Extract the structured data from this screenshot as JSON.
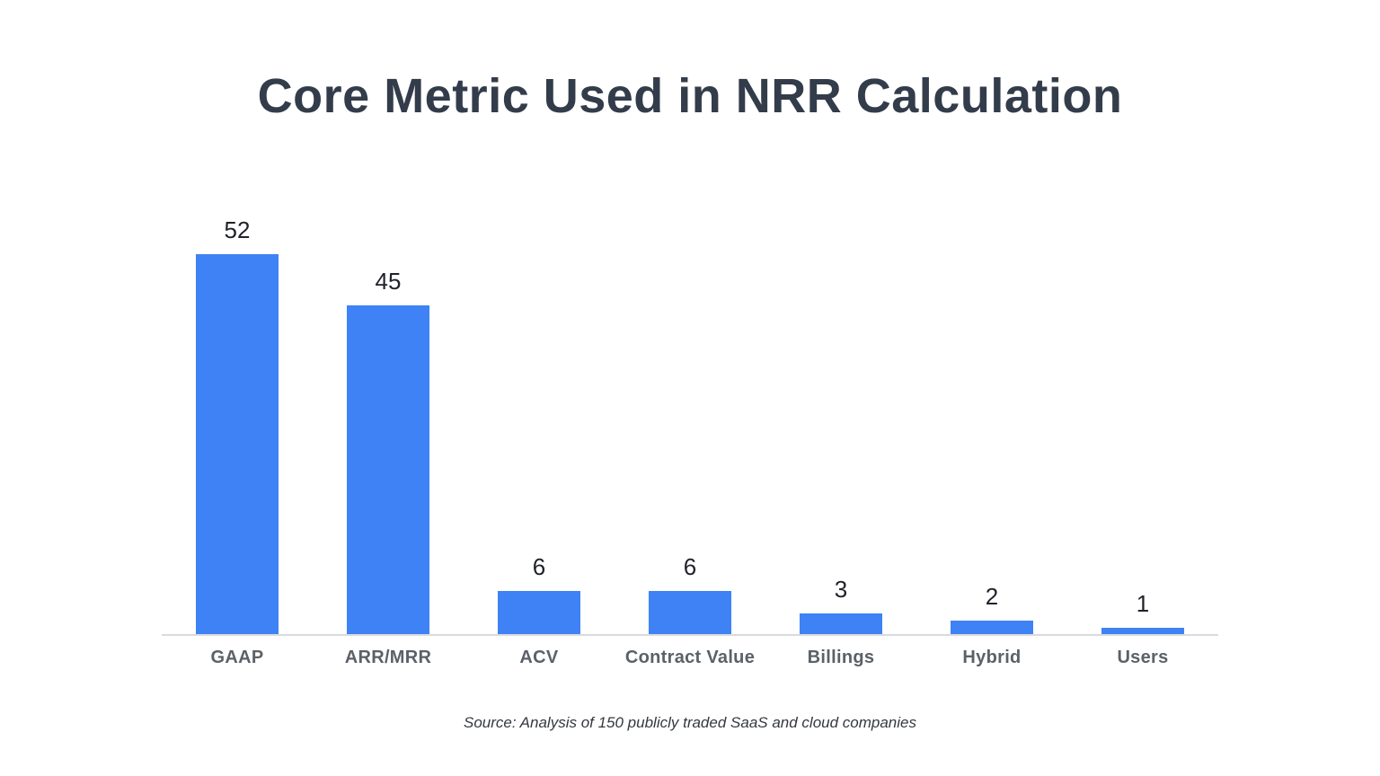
{
  "chart_data": {
    "type": "bar",
    "title": "Core Metric Used in NRR Calculation",
    "categories": [
      "GAAP",
      "ARR/MRR",
      "ACV",
      "Contract Value",
      "Billings",
      "Hybrid",
      "Users"
    ],
    "values": [
      52,
      45,
      6,
      6,
      3,
      2,
      1
    ],
    "xlabel": "",
    "ylabel": "",
    "ylim": [
      0,
      52
    ],
    "grid": false,
    "legend": false,
    "data_labels_shown": true,
    "bar_color": "#3E82F5",
    "value_label_color": "#1F2228",
    "category_label_color": "#5B6168",
    "axis_line_color": "#D9DBDE",
    "title_color": "#333C4A",
    "source_note": "Source: Analysis of 150 publicly traded SaaS and cloud companies"
  },
  "page": {
    "background_color": "#ffffff"
  }
}
